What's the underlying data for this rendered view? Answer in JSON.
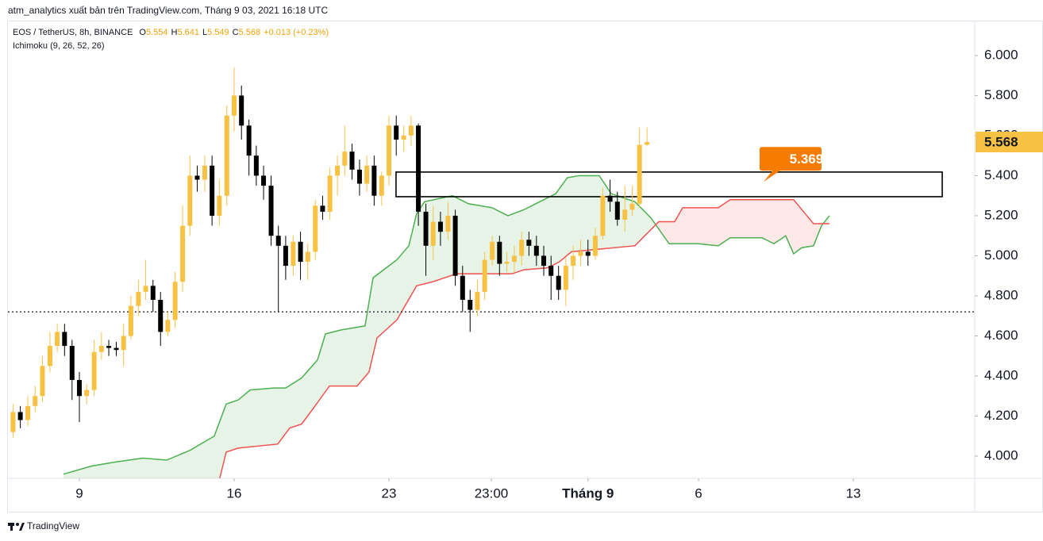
{
  "header": {
    "publisher": "atm_analytics xuất bản trên TradingView.com, Tháng 9 03, 2021 16:18 UTC",
    "symbol": "EOS / TetherUS, 8h, BINANCE",
    "indicator": "Ichimoku (9, 26, 52, 26)",
    "ohlc_letters": [
      "O",
      "H",
      "L",
      "C"
    ],
    "change": "+0.013 (+0.23%)",
    "brand": "TradingView"
  },
  "chart_data": {
    "type": "candlestick",
    "x": [
      6,
      6.33,
      6.67,
      7,
      7.33,
      7.67,
      8,
      8.33,
      8.67,
      9,
      9.33,
      9.67,
      10,
      10.33,
      10.67,
      11,
      11.33,
      11.67,
      12,
      12.33,
      12.67,
      13,
      13.33,
      13.67,
      14,
      14.33,
      14.67,
      15,
      15.33,
      15.67,
      16,
      16.33,
      16.67,
      17,
      17.33,
      17.67,
      18,
      18.33,
      18.67,
      19,
      19.33,
      19.67,
      20,
      20.33,
      20.67,
      21,
      21.33,
      21.67,
      22,
      22.33,
      22.67,
      23,
      23.33,
      23.67,
      24,
      24.33,
      24.67,
      25,
      25.33,
      25.67,
      26,
      26.33,
      26.67,
      27,
      27.33,
      27.67,
      28,
      28.33,
      28.67,
      29,
      29.33,
      29.67,
      30,
      30.33,
      30.67,
      31,
      31.33,
      31.67,
      32,
      32.33,
      32.67,
      33,
      33.33,
      33.67,
      34,
      34.33,
      34.67
    ],
    "open": [
      4.12,
      4.22,
      4.18,
      4.25,
      4.3,
      4.45,
      4.55,
      4.62,
      4.55,
      4.38,
      4.3,
      4.33,
      4.52,
      4.55,
      4.54,
      4.53,
      4.6,
      4.75,
      4.82,
      4.85,
      4.78,
      4.62,
      4.68,
      4.87,
      5.15,
      5.4,
      5.38,
      5.45,
      5.2,
      5.3,
      5.7,
      5.8,
      5.65,
      5.5,
      5.4,
      5.35,
      5.1,
      5.05,
      4.95,
      5.07,
      4.97,
      5.02,
      5.25,
      5.22,
      5.4,
      5.45,
      5.52,
      5.43,
      5.36,
      5.45,
      5.3,
      5.4,
      5.65,
      5.58,
      5.6,
      5.65,
      5.22,
      5.05,
      5.17,
      5.12,
      5.2,
      4.9,
      4.78,
      4.73,
      4.82,
      4.98,
      5.07,
      4.96,
      4.97,
      5.0,
      5.08,
      5.05,
      5.0,
      4.95,
      4.9,
      4.83,
      4.95,
      5.0,
      5.02,
      5.0,
      5.1,
      5.3,
      5.27,
      5.18,
      5.23,
      5.26,
      5.554
    ],
    "high": [
      4.26,
      4.25,
      4.3,
      4.35,
      4.5,
      4.62,
      4.66,
      4.66,
      4.58,
      4.42,
      4.36,
      4.58,
      4.62,
      4.58,
      4.57,
      4.66,
      4.8,
      4.88,
      4.98,
      4.88,
      4.82,
      4.72,
      4.92,
      5.25,
      5.5,
      5.45,
      5.5,
      5.5,
      5.38,
      5.75,
      5.94,
      5.85,
      5.68,
      5.55,
      5.45,
      5.4,
      5.15,
      5.1,
      5.1,
      5.12,
      5.06,
      5.28,
      5.3,
      5.44,
      5.5,
      5.65,
      5.56,
      5.48,
      5.5,
      5.5,
      5.42,
      5.7,
      5.7,
      5.65,
      5.7,
      5.66,
      5.26,
      5.25,
      5.22,
      5.27,
      5.23,
      4.95,
      4.83,
      4.88,
      5.02,
      5.1,
      5.1,
      5.02,
      5.05,
      5.12,
      5.12,
      5.1,
      5.05,
      5.0,
      4.95,
      4.99,
      5.05,
      5.08,
      5.08,
      5.14,
      5.34,
      5.38,
      5.32,
      5.35,
      5.35,
      5.64,
      5.641
    ],
    "low": [
      4.09,
      4.14,
      4.15,
      4.22,
      4.27,
      4.42,
      4.52,
      4.5,
      4.28,
      4.17,
      4.26,
      4.3,
      4.48,
      4.5,
      4.5,
      4.45,
      4.58,
      4.7,
      4.78,
      4.72,
      4.55,
      4.6,
      4.64,
      4.82,
      5.1,
      5.32,
      5.32,
      5.15,
      5.15,
      5.25,
      5.62,
      5.58,
      5.4,
      5.35,
      5.28,
      5.05,
      4.72,
      4.88,
      4.9,
      4.88,
      4.88,
      4.98,
      5.18,
      5.18,
      5.3,
      5.4,
      5.38,
      5.3,
      5.32,
      5.25,
      5.25,
      5.35,
      5.5,
      5.52,
      5.55,
      5.15,
      4.9,
      4.98,
      5.05,
      5.08,
      4.85,
      4.72,
      4.62,
      4.7,
      4.78,
      4.95,
      4.9,
      4.92,
      4.92,
      4.95,
      5.0,
      4.95,
      4.9,
      4.78,
      4.78,
      4.75,
      4.88,
      4.95,
      4.95,
      4.98,
      5.08,
      5.22,
      5.15,
      5.12,
      5.2,
      5.24,
      5.549
    ],
    "close": [
      4.22,
      4.18,
      4.25,
      4.3,
      4.45,
      4.55,
      4.62,
      4.55,
      4.38,
      4.3,
      4.33,
      4.52,
      4.55,
      4.54,
      4.53,
      4.6,
      4.75,
      4.82,
      4.85,
      4.78,
      4.62,
      4.68,
      4.87,
      5.15,
      5.4,
      5.38,
      5.45,
      5.2,
      5.3,
      5.7,
      5.8,
      5.65,
      5.5,
      5.4,
      5.35,
      5.1,
      5.05,
      4.95,
      5.07,
      4.97,
      5.02,
      5.25,
      5.22,
      5.4,
      5.45,
      5.52,
      5.43,
      5.36,
      5.45,
      5.3,
      5.4,
      5.65,
      5.58,
      5.6,
      5.65,
      5.22,
      5.05,
      5.17,
      5.12,
      5.2,
      4.9,
      4.78,
      4.73,
      4.82,
      4.98,
      5.07,
      4.96,
      4.97,
      5.0,
      5.08,
      5.05,
      5.0,
      4.95,
      4.9,
      4.83,
      4.95,
      5.0,
      5.02,
      5.0,
      5.1,
      5.3,
      5.27,
      5.18,
      5.23,
      5.26,
      5.554,
      5.568
    ],
    "up_color": "#f7c244",
    "down_color": "#000000",
    "span_a": {
      "color": "#4caf50",
      "x": [
        8.28,
        9.54,
        10.61,
        11.87,
        12.95,
        14.02,
        15.1,
        15.64,
        16.18,
        16.72,
        17.79,
        18.33,
        19.05,
        19.77,
        20.13,
        20.84,
        21.92,
        22.28,
        23.36,
        23.9,
        24.25,
        24.61,
        25.87,
        26.59,
        27.66,
        28.38,
        29.1,
        29.82,
        30.54,
        31.07,
        31.61,
        32.51,
        33.05,
        34.12,
        34.84,
        35.67,
        37.0,
        37.89,
        38.43,
        39.87,
        40.41,
        40.94,
        41.3,
        41.66,
        42.2,
        42.56,
        42.92
      ],
      "values": [
        3.91,
        3.95,
        3.97,
        3.99,
        3.98,
        4.03,
        4.1,
        4.26,
        4.28,
        4.33,
        4.34,
        4.34,
        4.39,
        4.48,
        4.61,
        4.63,
        4.65,
        4.89,
        4.98,
        5.05,
        5.21,
        5.27,
        5.3,
        5.26,
        5.24,
        5.2,
        5.23,
        5.27,
        5.31,
        5.39,
        5.4,
        5.4,
        5.31,
        5.27,
        5.19,
        5.06,
        5.06,
        5.05,
        5.09,
        5.09,
        5.06,
        5.1,
        5.01,
        5.04,
        5.05,
        5.15,
        5.2
      ]
    },
    "span_b": {
      "color": "#f0524f",
      "x": [
        15.35,
        15.64,
        16.18,
        17.97,
        18.51,
        19.05,
        19.59,
        20.31,
        21.56,
        22.1,
        22.46,
        23.36,
        24.25,
        24.97,
        26.05,
        27.31,
        28.56,
        29.1,
        30.18,
        30.71,
        31.25,
        34.12,
        35.2,
        35.92,
        36.28,
        37.89,
        38.43,
        41.3,
        42.2,
        42.92
      ],
      "values": [
        3.89,
        4.02,
        4.04,
        4.06,
        4.14,
        4.16,
        4.24,
        4.35,
        4.35,
        4.42,
        4.59,
        4.68,
        4.85,
        4.87,
        4.91,
        4.91,
        4.91,
        4.93,
        4.94,
        4.97,
        5.02,
        5.05,
        5.17,
        5.17,
        5.24,
        5.24,
        5.28,
        5.28,
        5.16,
        5.16
      ]
    },
    "price_line": 4.72,
    "zone": {
      "x": [
        23.32,
        48.02
      ],
      "y": [
        5.295,
        5.418
      ]
    },
    "annotation": {
      "value": 5.369,
      "x": 39.94
    },
    "xlim": [
      5.77,
      49.49
    ],
    "xticks": [
      9,
      16,
      23,
      {
        "value": 27.63,
        "label": "23:00"
      },
      {
        "value": 32,
        "label": "Tháng 9"
      },
      {
        "value": 37,
        "label": "6"
      },
      {
        "value": 44,
        "label": "13"
      }
    ],
    "ylim": [
      3.889,
      6.17
    ],
    "yticks": [
      {
        "value": 4,
        "label": "4.000"
      },
      {
        "value": 4.2,
        "label": "4.200"
      },
      {
        "value": 4.4,
        "label": "4.400"
      },
      {
        "value": 4.6,
        "label": "4.600"
      },
      {
        "value": 4.8,
        "label": "4.800"
      },
      {
        "value": 5,
        "label": "5.000"
      },
      {
        "value": 5.2,
        "label": "5.200"
      },
      {
        "value": 5.4,
        "label": "5.400"
      },
      {
        "value": 5.6,
        "label": "5.600"
      },
      {
        "value": 5.8,
        "label": "5.800"
      },
      {
        "value": 6,
        "label": "6.000"
      }
    ]
  }
}
